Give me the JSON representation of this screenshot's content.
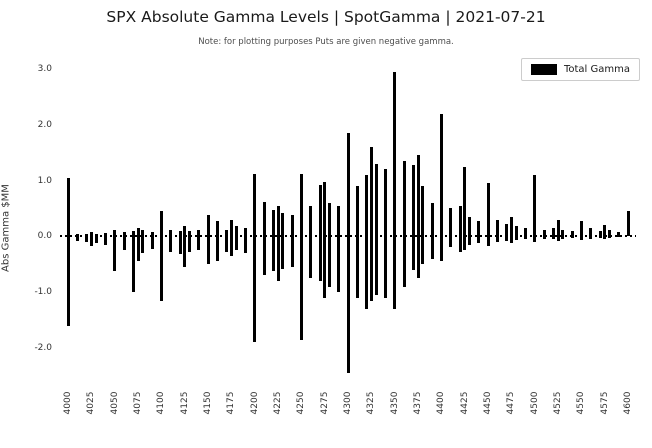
{
  "title": "SPX Absolute Gamma Levels | SpotGamma | 2021-07-21",
  "note": "Note: for plotting purposes Puts are given negative gamma.",
  "ylabel": "Abs Gamma $MM",
  "legend": {
    "label": "Total Gamma",
    "swatch_color": "#000000"
  },
  "colors": {
    "bar": "#000000",
    "tick_label": "#333333",
    "note": "#4d4d4d",
    "background": "#ffffff"
  },
  "chart_data": {
    "type": "bar",
    "title": "SPX Absolute Gamma Levels | SpotGamma | 2021-07-21",
    "subtitle": "Note: for plotting purposes Puts are given negative gamma.",
    "xlabel": "",
    "ylabel": "Abs Gamma $MM",
    "legend_entries": [
      "Total Gamma"
    ],
    "legend_position": "upper right",
    "grid": false,
    "zero_line": "dashed",
    "x_range": [
      4000,
      4600
    ],
    "y_range": [
      -2.7,
      3.25
    ],
    "y_ticks": [
      -2.0,
      -1.0,
      0.0,
      1.0,
      2.0,
      3.0
    ],
    "x_tick_labels": [
      "4000",
      "4025",
      "4050",
      "4075",
      "4100",
      "4125",
      "4150",
      "4175",
      "4200",
      "4225",
      "4250",
      "4275",
      "4300",
      "4325",
      "4350",
      "4375",
      "4400",
      "4425",
      "4450",
      "4475",
      "4500",
      "4525",
      "4550",
      "4575",
      "4600"
    ],
    "series_description": "Each strike plots call gamma (positive) and put gamma (negative) as one black bar spanning [put_gamma, call_gamma]; values in $MM.",
    "strikes": [
      [
        4000,
        1.05,
        -1.6
      ],
      [
        4010,
        0.04,
        -0.08
      ],
      [
        4020,
        0.05,
        -0.1
      ],
      [
        4025,
        0.08,
        -0.18
      ],
      [
        4030,
        0.05,
        -0.12
      ],
      [
        4040,
        0.06,
        -0.15
      ],
      [
        4050,
        0.12,
        -0.62
      ],
      [
        4060,
        0.08,
        -0.25
      ],
      [
        4070,
        0.1,
        -1.0
      ],
      [
        4075,
        0.15,
        -0.45
      ],
      [
        4080,
        0.12,
        -0.3
      ],
      [
        4090,
        0.08,
        -0.22
      ],
      [
        4100,
        0.45,
        -1.15
      ],
      [
        4110,
        0.12,
        -0.28
      ],
      [
        4120,
        0.1,
        -0.32
      ],
      [
        4125,
        0.18,
        -0.55
      ],
      [
        4130,
        0.1,
        -0.28
      ],
      [
        4140,
        0.12,
        -0.25
      ],
      [
        4150,
        0.38,
        -0.5
      ],
      [
        4160,
        0.28,
        -0.45
      ],
      [
        4170,
        0.12,
        -0.28
      ],
      [
        4175,
        0.3,
        -0.35
      ],
      [
        4180,
        0.18,
        -0.25
      ],
      [
        4190,
        0.15,
        -0.3
      ],
      [
        4200,
        1.12,
        -1.9
      ],
      [
        4210,
        0.62,
        -0.7
      ],
      [
        4220,
        0.48,
        -0.62
      ],
      [
        4225,
        0.55,
        -0.8
      ],
      [
        4230,
        0.42,
        -0.58
      ],
      [
        4240,
        0.38,
        -0.55
      ],
      [
        4250,
        1.12,
        -1.85
      ],
      [
        4260,
        0.55,
        -0.75
      ],
      [
        4270,
        0.92,
        -0.8
      ],
      [
        4275,
        0.98,
        -1.1
      ],
      [
        4280,
        0.6,
        -0.9
      ],
      [
        4290,
        0.55,
        -1.0
      ],
      [
        4300,
        1.85,
        -2.45
      ],
      [
        4310,
        0.9,
        -1.1
      ],
      [
        4320,
        1.1,
        -1.3
      ],
      [
        4325,
        1.6,
        -1.15
      ],
      [
        4330,
        1.3,
        -1.05
      ],
      [
        4340,
        1.2,
        -1.1
      ],
      [
        4350,
        2.95,
        -1.3
      ],
      [
        4360,
        1.35,
        -0.9
      ],
      [
        4370,
        1.28,
        -0.6
      ],
      [
        4375,
        1.45,
        -0.75
      ],
      [
        4380,
        0.9,
        -0.5
      ],
      [
        4390,
        0.6,
        -0.4
      ],
      [
        4400,
        2.2,
        -0.45
      ],
      [
        4410,
        0.5,
        -0.2
      ],
      [
        4420,
        0.55,
        -0.28
      ],
      [
        4425,
        1.25,
        -0.25
      ],
      [
        4430,
        0.35,
        -0.15
      ],
      [
        4440,
        0.28,
        -0.12
      ],
      [
        4450,
        0.95,
        -0.18
      ],
      [
        4460,
        0.3,
        -0.1
      ],
      [
        4470,
        0.22,
        -0.08
      ],
      [
        4475,
        0.35,
        -0.12
      ],
      [
        4480,
        0.18,
        -0.06
      ],
      [
        4490,
        0.15,
        -0.05
      ],
      [
        4500,
        1.1,
        -0.1
      ],
      [
        4510,
        0.12,
        -0.04
      ],
      [
        4520,
        0.15,
        -0.05
      ],
      [
        4525,
        0.3,
        -0.08
      ],
      [
        4530,
        0.12,
        -0.04
      ],
      [
        4540,
        0.1,
        -0.03
      ],
      [
        4550,
        0.28,
        -0.06
      ],
      [
        4560,
        0.15,
        -0.04
      ],
      [
        4570,
        0.1,
        -0.03
      ],
      [
        4575,
        0.2,
        -0.05
      ],
      [
        4580,
        0.12,
        -0.03
      ],
      [
        4590,
        0.08,
        -0.02
      ],
      [
        4600,
        0.45,
        0.0
      ]
    ]
  }
}
